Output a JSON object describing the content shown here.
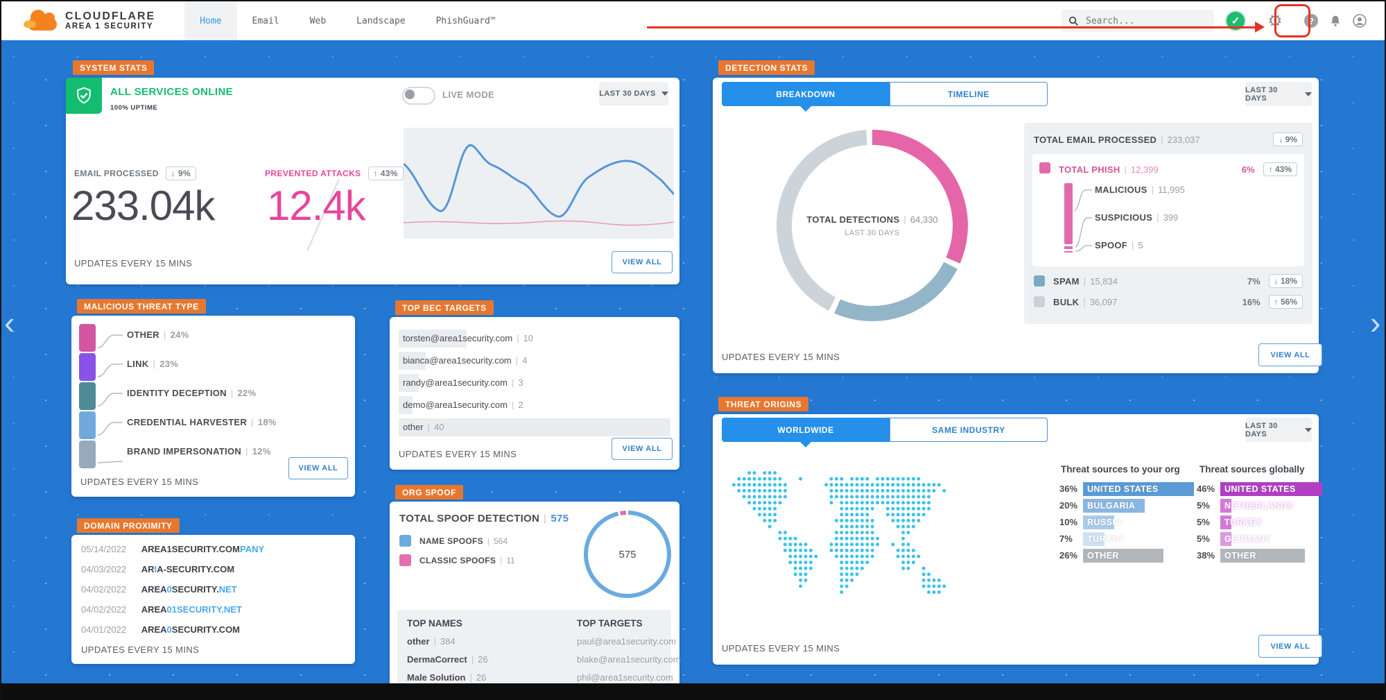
{
  "colors": {
    "accent_blue": "#2490ea",
    "tag_orange": "#e8772e",
    "pink": "#e8459a",
    "green": "#12bd70",
    "background_blue": "#2478d2",
    "map_cyan": "#3cc3e8"
  },
  "nav": {
    "brand_line1": "CLOUDFLARE",
    "brand_line2": "AREA 1 SECURITY",
    "items": [
      {
        "label": "Home",
        "active": true
      },
      {
        "label": "Email",
        "active": false
      },
      {
        "label": "Web",
        "active": false
      },
      {
        "label": "Landscape",
        "active": false
      },
      {
        "label": "PhishGuard™",
        "active": false
      }
    ],
    "search_placeholder": "Search..."
  },
  "system_stats": {
    "tag": "SYSTEM STATS",
    "status": "ALL SERVICES ONLINE",
    "uptime": "100% UPTIME",
    "live_mode": "LIVE MODE",
    "period": "LAST 30 DAYS",
    "email_processed": {
      "label": "EMAIL PROCESSED",
      "delta": "↓ 9%",
      "value": "233.04k"
    },
    "prevented_attacks": {
      "label": "PREVENTED ATTACKS",
      "delta": "↑ 43%",
      "value": "12.4k"
    },
    "updates": "UPDATES EVERY 15 MINS",
    "view_all": "VIEW ALL"
  },
  "malicious": {
    "tag": "MALICIOUS THREAT TYPE",
    "rows": [
      {
        "label": "OTHER",
        "pct": "24%",
        "color": "#d256a0"
      },
      {
        "label": "LINK",
        "pct": "23%",
        "color": "#8a52e8"
      },
      {
        "label": "IDENTITY DECEPTION",
        "pct": "22%",
        "color": "#4f8b96"
      },
      {
        "label": "CREDENTIAL HARVESTER",
        "pct": "18%",
        "color": "#72a9dc"
      },
      {
        "label": "BRAND IMPERSONATION",
        "pct": "12%",
        "color": "#96a9bd"
      }
    ],
    "updates": "UPDATES EVERY 15 MINS",
    "view_all": "VIEW ALL"
  },
  "domain_proximity": {
    "tag": "DOMAIN PROXIMITY",
    "rows": [
      {
        "date": "05/14/2022",
        "pre": "AREA1SECURITY.COM",
        "hi": "PANY",
        "mid": "",
        "hi2": ""
      },
      {
        "date": "04/03/2022",
        "pre": "AR",
        "hi": "I",
        "mid": "A-SECURITY.COM",
        "hi2": ""
      },
      {
        "date": "04/02/2022",
        "pre": "AREA",
        "hi": "0",
        "mid": "SECURITY.",
        "hi2": "NET"
      },
      {
        "date": "04/02/2022",
        "pre": "AREA",
        "hi": "01SECURITY.NET",
        "mid": "",
        "hi2": ""
      },
      {
        "date": "04/01/2022",
        "pre": "AREA",
        "hi": "0",
        "mid": "SECURITY.COM",
        "hi2": ""
      }
    ],
    "updates": "UPDATES EVERY 15 MINS"
  },
  "bec": {
    "tag": "TOP BEC TARGETS",
    "rows": [
      {
        "email": "torsten@area1security.com",
        "count": "10",
        "count_num": 10
      },
      {
        "email": "bianca@area1security.com",
        "count": "4",
        "count_num": 4
      },
      {
        "email": "randy@area1security.com",
        "count": "3",
        "count_num": 3
      },
      {
        "email": "demo@area1security.com",
        "count": "2",
        "count_num": 2
      },
      {
        "email": "other",
        "count": "40",
        "count_num": 40
      }
    ],
    "updates": "UPDATES EVERY 15 MINS",
    "view_all": "VIEW ALL"
  },
  "org_spoof": {
    "tag": "ORG SPOOF",
    "title": "TOTAL SPOOF DETECTION",
    "total": "575",
    "legend": [
      {
        "label": "NAME SPOOFS",
        "value": "564",
        "color": "#6aabdf"
      },
      {
        "label": "CLASSIC SPOOFS",
        "value": "11",
        "color": "#e070b0"
      }
    ],
    "donut_value": "575",
    "top_names": {
      "header": "TOP NAMES",
      "rows": [
        {
          "name": "other",
          "count": "384"
        },
        {
          "name": "DermaCorrect",
          "count": "26"
        },
        {
          "name": "Male Solution",
          "count": "26"
        }
      ]
    },
    "top_targets": {
      "header": "TOP TARGETS",
      "rows": [
        "paul@area1security.com",
        "blake@area1security.com",
        "phil@area1security.com"
      ]
    }
  },
  "detection": {
    "tag": "DETECTION STATS",
    "tab_breakdown": "BREAKDOWN",
    "tab_timeline": "TIMELINE",
    "period": "LAST 30 DAYS",
    "donut": {
      "label": "TOTAL DETECTIONS",
      "value": "64,330",
      "sub": "LAST 30 DAYS"
    },
    "total_email": {
      "label": "TOTAL EMAIL PROCESSED",
      "value": "233,037",
      "delta": "↓ 9%"
    },
    "phish": {
      "label": "TOTAL PHISH",
      "value": "12,399",
      "pct": "6%",
      "delta": "↑ 43%",
      "color": "#e06aac",
      "breakdown": [
        {
          "label": "MALICIOUS",
          "value": "11,995"
        },
        {
          "label": "SUSPICIOUS",
          "value": "399"
        },
        {
          "label": "SPOOF",
          "value": "5"
        }
      ]
    },
    "spam": {
      "label": "SPAM",
      "value": "15,834",
      "pct": "7%",
      "delta": "↓ 18%",
      "color": "#7aa9c4"
    },
    "bulk": {
      "label": "BULK",
      "value": "36,097",
      "pct": "16%",
      "delta": "↑ 56%",
      "color": "#c9d2d8"
    },
    "updates": "UPDATES EVERY 15 MINS",
    "view_all": "VIEW ALL"
  },
  "origins": {
    "tag": "THREAT ORIGINS",
    "tab_worldwide": "WORLDWIDE",
    "tab_same_industry": "SAME INDUSTRY",
    "period": "LAST 30 DAYS",
    "org_col": {
      "header": "Threat sources to your org",
      "rows": [
        {
          "pct": "36%",
          "pct_num": 36,
          "label": "UNITED STATES",
          "color": "#5b9bd5"
        },
        {
          "pct": "20%",
          "pct_num": 20,
          "label": "BULGARIA",
          "color": "#89b7e3"
        },
        {
          "pct": "10%",
          "pct_num": 10,
          "label": "RUSSIA",
          "color": "#abcbea"
        },
        {
          "pct": "7%",
          "pct_num": 7,
          "label": "TURKEY",
          "color": "#cfe2f4"
        },
        {
          "pct": "26%",
          "pct_num": 26,
          "label": "OTHER",
          "color": "#b2b7bc"
        }
      ]
    },
    "global_col": {
      "header": "Threat sources globally",
      "rows": [
        {
          "pct": "46%",
          "pct_num": 46,
          "label": "UNITED STATES",
          "color": "#b13fc4"
        },
        {
          "pct": "5%",
          "pct_num": 5,
          "label": "NETHERLANDS",
          "color": "#d27ad8"
        },
        {
          "pct": "5%",
          "pct_num": 5,
          "label": "TURKEY",
          "color": "#d27ad8"
        },
        {
          "pct": "5%",
          "pct_num": 5,
          "label": "GERMANY",
          "color": "#dd9ae2"
        },
        {
          "pct": "38%",
          "pct_num": 38,
          "label": "OTHER",
          "color": "#b2b7bc"
        }
      ]
    },
    "updates": "UPDATES EVERY 15 MINS",
    "view_all": "VIEW ALL"
  },
  "chart_data": [
    {
      "type": "pie",
      "title": "TOTAL DETECTIONS",
      "total": 64330,
      "slices": [
        {
          "label": "TOTAL PHISH",
          "value": 12399
        },
        {
          "label": "SPAM",
          "value": 15834
        },
        {
          "label": "BULK",
          "value": 36097
        }
      ]
    },
    {
      "type": "pie",
      "title": "TOTAL SPOOF DETECTION",
      "total": 575,
      "slices": [
        {
          "label": "NAME SPOOFS",
          "value": 564
        },
        {
          "label": "CLASSIC SPOOFS",
          "value": 11
        }
      ]
    },
    {
      "type": "bar",
      "title": "MALICIOUS THREAT TYPE",
      "categories": [
        "OTHER",
        "LINK",
        "IDENTITY DECEPTION",
        "CREDENTIAL HARVESTER",
        "BRAND IMPERSONATION"
      ],
      "values": [
        24,
        23,
        22,
        18,
        12
      ]
    },
    {
      "type": "bar",
      "title": "TOP BEC TARGETS",
      "categories": [
        "torsten@area1security.com",
        "bianca@area1security.com",
        "randy@area1security.com",
        "demo@area1security.com",
        "other"
      ],
      "values": [
        10,
        4,
        3,
        2,
        40
      ]
    },
    {
      "type": "bar",
      "title": "Threat sources to your org",
      "categories": [
        "UNITED STATES",
        "BULGARIA",
        "RUSSIA",
        "TURKEY",
        "OTHER"
      ],
      "values": [
        36,
        20,
        10,
        7,
        26
      ]
    },
    {
      "type": "bar",
      "title": "Threat sources globally",
      "categories": [
        "UNITED STATES",
        "NETHERLANDS",
        "TURKEY",
        "GERMANY",
        "OTHER"
      ],
      "values": [
        46,
        5,
        5,
        5,
        38
      ]
    },
    {
      "type": "line",
      "title": "EMAIL PROCESSED vs PREVENTED ATTACKS (30 day sparkline, unlabeled axes)",
      "series": [
        {
          "name": "EMAIL PROCESSED"
        },
        {
          "name": "PREVENTED ATTACKS"
        }
      ]
    }
  ]
}
